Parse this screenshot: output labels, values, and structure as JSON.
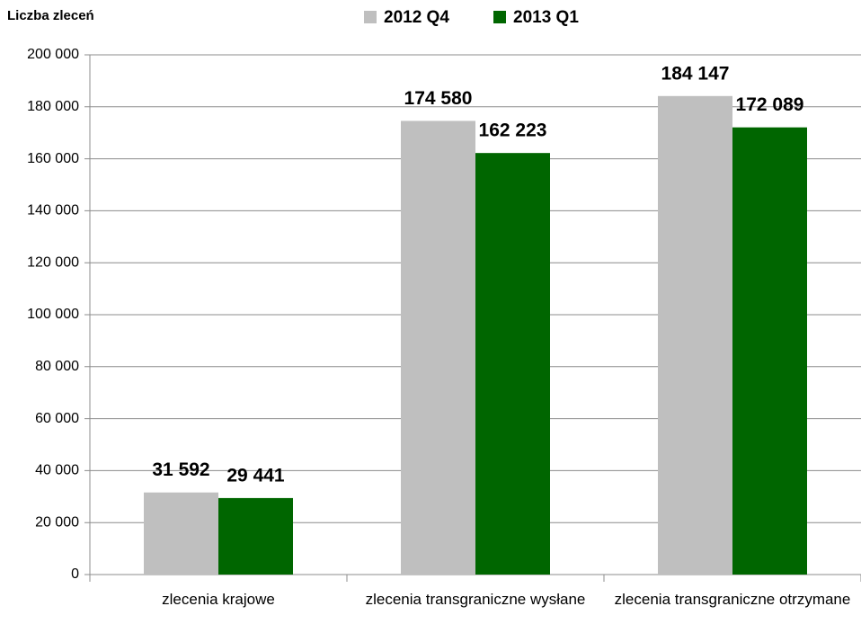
{
  "chart_data": {
    "type": "bar",
    "title": "Liczba zleceń",
    "categories": [
      "zlecenia krajowe",
      "zlecenia transgraniczne wysłane",
      "zlecenia transgraniczne otrzymane"
    ],
    "series": [
      {
        "name": "2012 Q4",
        "color": "#bfbfbf",
        "values": [
          31592,
          174580,
          184147
        ],
        "value_labels": [
          "31 592",
          "174 580",
          "184 147"
        ]
      },
      {
        "name": "2013 Q1",
        "color": "#006600",
        "values": [
          29441,
          162223,
          172089
        ],
        "value_labels": [
          "29 441",
          "162 223",
          "172 089"
        ]
      }
    ],
    "ylim": [
      0,
      200000
    ],
    "yticks": [
      0,
      {
        "value": 20000,
        "label": "20 000"
      },
      {
        "value": 40000,
        "label": "40 000"
      },
      {
        "value": 60000,
        "label": "60 000"
      },
      {
        "value": 80000,
        "label": "80 000"
      },
      {
        "value": 100000,
        "label": "100 000"
      },
      {
        "value": 120000,
        "label": "120 000"
      },
      {
        "value": 140000,
        "label": "140 000"
      },
      {
        "value": 160000,
        "label": "160 000"
      },
      {
        "value": 180000,
        "label": "180 000"
      },
      {
        "value": 200000,
        "label": "200 000"
      }
    ],
    "grid": true,
    "legend": "top"
  }
}
